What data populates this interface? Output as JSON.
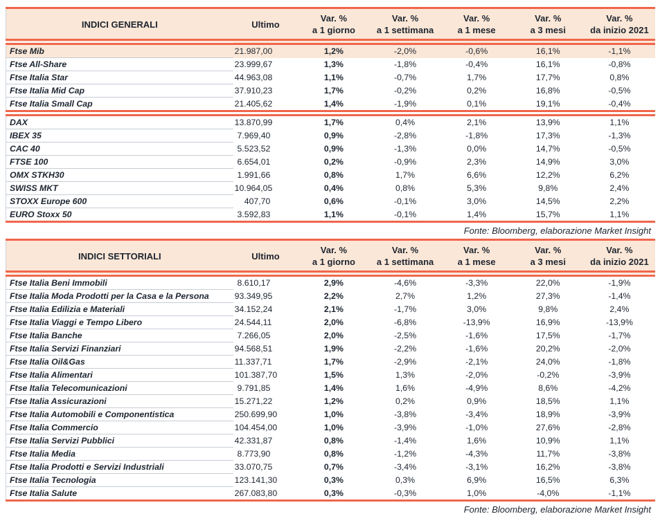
{
  "colors": {
    "accent_border": "#F0664B",
    "header_bg": "#FBE7D7",
    "highlight_row_bg": "#FBE7D7",
    "row_divider": "#C6CDD5",
    "text": "#1D2530"
  },
  "columns": {
    "ultimo": "Ultimo",
    "pct": [
      {
        "l1": "Var. %",
        "l2": "a 1 giorno"
      },
      {
        "l1": "Var. %",
        "l2": "a 1 settimana"
      },
      {
        "l1": "Var. %",
        "l2": "a 1 mese"
      },
      {
        "l1": "Var. %",
        "l2": "a 3 mesi"
      },
      {
        "l1": "Var. %",
        "l2": "da inizio 2021"
      }
    ]
  },
  "tables": [
    {
      "title": "INDICI GENERALI",
      "source_note": "Fonte: Bloomberg, elaborazione Market Insight",
      "groups": [
        [
          {
            "name": "Ftse Mib",
            "ultimo": "21.987,00",
            "d1": "1,2%",
            "w1": "-2,0%",
            "m1": "-0,6%",
            "m3": "16,1%",
            "ytd": "-1,1%",
            "highlight": true
          },
          {
            "name": "Ftse All-Share",
            "ultimo": "23.999,67",
            "d1": "1,3%",
            "w1": "-1,8%",
            "m1": "-0,4%",
            "m3": "16,1%",
            "ytd": "-0,8%"
          },
          {
            "name": "Ftse Italia Star",
            "ultimo": "44.963,08",
            "d1": "1,1%",
            "w1": "-0,7%",
            "m1": "1,7%",
            "m3": "17,7%",
            "ytd": "0,8%"
          },
          {
            "name": "Ftse Italia Mid Cap",
            "ultimo": "37.910,23",
            "d1": "1,7%",
            "w1": "-0,2%",
            "m1": "0,2%",
            "m3": "16,8%",
            "ytd": "-0,5%"
          },
          {
            "name": "Ftse Italia Small Cap",
            "ultimo": "21.405,62",
            "d1": "1,4%",
            "w1": "-1,9%",
            "m1": "0,1%",
            "m3": "19,1%",
            "ytd": "-0,4%"
          }
        ],
        [
          {
            "name": "DAX",
            "ultimo": "13.870,99",
            "d1": "1,7%",
            "w1": "0,4%",
            "m1": "2,1%",
            "m3": "13,9%",
            "ytd": "1,1%"
          },
          {
            "name": "IBEX 35",
            "ultimo": "7.969,40",
            "d1": "0,9%",
            "w1": "-2,8%",
            "m1": "-1,8%",
            "m3": "17,3%",
            "ytd": "-1,3%"
          },
          {
            "name": "CAC 40",
            "ultimo": "5.523,52",
            "d1": "0,9%",
            "w1": "-1,3%",
            "m1": "0,0%",
            "m3": "14,7%",
            "ytd": "-0,5%"
          },
          {
            "name": "FTSE 100",
            "ultimo": "6.654,01",
            "d1": "0,2%",
            "w1": "-0,9%",
            "m1": "2,3%",
            "m3": "14,9%",
            "ytd": "3,0%"
          },
          {
            "name": "OMX STKH30",
            "ultimo": "1.991,66",
            "d1": "0,8%",
            "w1": "1,7%",
            "m1": "6,6%",
            "m3": "12,2%",
            "ytd": "6,2%"
          },
          {
            "name": "SWISS MKT",
            "ultimo": "10.964,05",
            "d1": "0,4%",
            "w1": "0,8%",
            "m1": "5,3%",
            "m3": "9,8%",
            "ytd": "2,4%"
          },
          {
            "name": "STOXX Europe 600",
            "ultimo": "407,70",
            "d1": "0,6%",
            "w1": "-0,1%",
            "m1": "3,0%",
            "m3": "14,5%",
            "ytd": "2,2%"
          },
          {
            "name": "EURO Stoxx 50",
            "ultimo": "3.592,83",
            "d1": "1,1%",
            "w1": "-0,1%",
            "m1": "1,4%",
            "m3": "15,7%",
            "ytd": "1,1%"
          }
        ]
      ]
    },
    {
      "title": "INDICI SETTORIALI",
      "source_note": "Fonte: Bloomberg, elaborazione Market Insight",
      "groups": [
        [
          {
            "name": "Ftse Italia Beni Immobili",
            "ultimo": "8.610,17",
            "d1": "2,9%",
            "w1": "-4,6%",
            "m1": "-3,3%",
            "m3": "22,0%",
            "ytd": "-1,9%"
          },
          {
            "name": "Ftse Italia Moda Prodotti per la Casa e la Persona",
            "ultimo": "93.349,95",
            "d1": "2,2%",
            "w1": "2,7%",
            "m1": "1,2%",
            "m3": "27,3%",
            "ytd": "-1,4%"
          },
          {
            "name": "Ftse Italia Edilizia e Materiali",
            "ultimo": "34.152,24",
            "d1": "2,1%",
            "w1": "-1,7%",
            "m1": "3,0%",
            "m3": "9,8%",
            "ytd": "2,4%"
          },
          {
            "name": "Ftse Italia Viaggi e Tempo Libero",
            "ultimo": "24.544,11",
            "d1": "2,0%",
            "w1": "-6,8%",
            "m1": "-13,9%",
            "m3": "16,9%",
            "ytd": "-13,9%"
          },
          {
            "name": "Ftse Italia Banche",
            "ultimo": "7.266,05",
            "d1": "2,0%",
            "w1": "-2,5%",
            "m1": "-1,6%",
            "m3": "17,5%",
            "ytd": "-1,7%"
          },
          {
            "name": "Ftse Italia Servizi Finanziari",
            "ultimo": "94.568,51",
            "d1": "1,9%",
            "w1": "-2,2%",
            "m1": "-1,6%",
            "m3": "20,2%",
            "ytd": "-2,0%"
          },
          {
            "name": "Ftse Italia Oil&Gas",
            "ultimo": "11.337,71",
            "d1": "1,7%",
            "w1": "-2,9%",
            "m1": "-2,1%",
            "m3": "24,0%",
            "ytd": "-1,8%"
          },
          {
            "name": "Ftse Italia Alimentari",
            "ultimo": "101.387,70",
            "d1": "1,5%",
            "w1": "1,3%",
            "m1": "-2,0%",
            "m3": "-0,2%",
            "ytd": "-3,9%"
          },
          {
            "name": "Ftse Italia Telecomunicazioni",
            "ultimo": "9.791,85",
            "d1": "1,4%",
            "w1": "1,6%",
            "m1": "-4,9%",
            "m3": "8,6%",
            "ytd": "-4,2%"
          },
          {
            "name": "Ftse Italia Assicurazioni",
            "ultimo": "15.271,22",
            "d1": "1,2%",
            "w1": "0,2%",
            "m1": "0,9%",
            "m3": "18,5%",
            "ytd": "1,1%"
          },
          {
            "name": "Ftse Italia Automobili e Componentistica",
            "ultimo": "250.699,90",
            "d1": "1,0%",
            "w1": "-3,8%",
            "m1": "-3,4%",
            "m3": "18,9%",
            "ytd": "-3,9%"
          },
          {
            "name": "Ftse Italia Commercio",
            "ultimo": "104.454,00",
            "d1": "1,0%",
            "w1": "-3,9%",
            "m1": "-1,0%",
            "m3": "27,6%",
            "ytd": "-2,8%"
          },
          {
            "name": "Ftse Italia Servizi Pubblici",
            "ultimo": "42.331,87",
            "d1": "0,8%",
            "w1": "-1,4%",
            "m1": "1,6%",
            "m3": "10,9%",
            "ytd": "1,1%"
          },
          {
            "name": "Ftse Italia Media",
            "ultimo": "8.773,90",
            "d1": "0,8%",
            "w1": "-1,2%",
            "m1": "-4,3%",
            "m3": "11,7%",
            "ytd": "-3,8%"
          },
          {
            "name": "Ftse Italia Prodotti e Servizi Industriali",
            "ultimo": "33.070,75",
            "d1": "0,7%",
            "w1": "-3,4%",
            "m1": "-3,1%",
            "m3": "16,2%",
            "ytd": "-3,8%"
          },
          {
            "name": "Ftse Italia Tecnologia",
            "ultimo": "123.141,30",
            "d1": "0,3%",
            "w1": "0,3%",
            "m1": "6,9%",
            "m3": "16,5%",
            "ytd": "6,3%"
          },
          {
            "name": "Ftse Italia Salute",
            "ultimo": "267.083,80",
            "d1": "0,3%",
            "w1": "-0,3%",
            "m1": "1,0%",
            "m3": "-4,0%",
            "ytd": "-1,1%"
          }
        ]
      ]
    }
  ]
}
